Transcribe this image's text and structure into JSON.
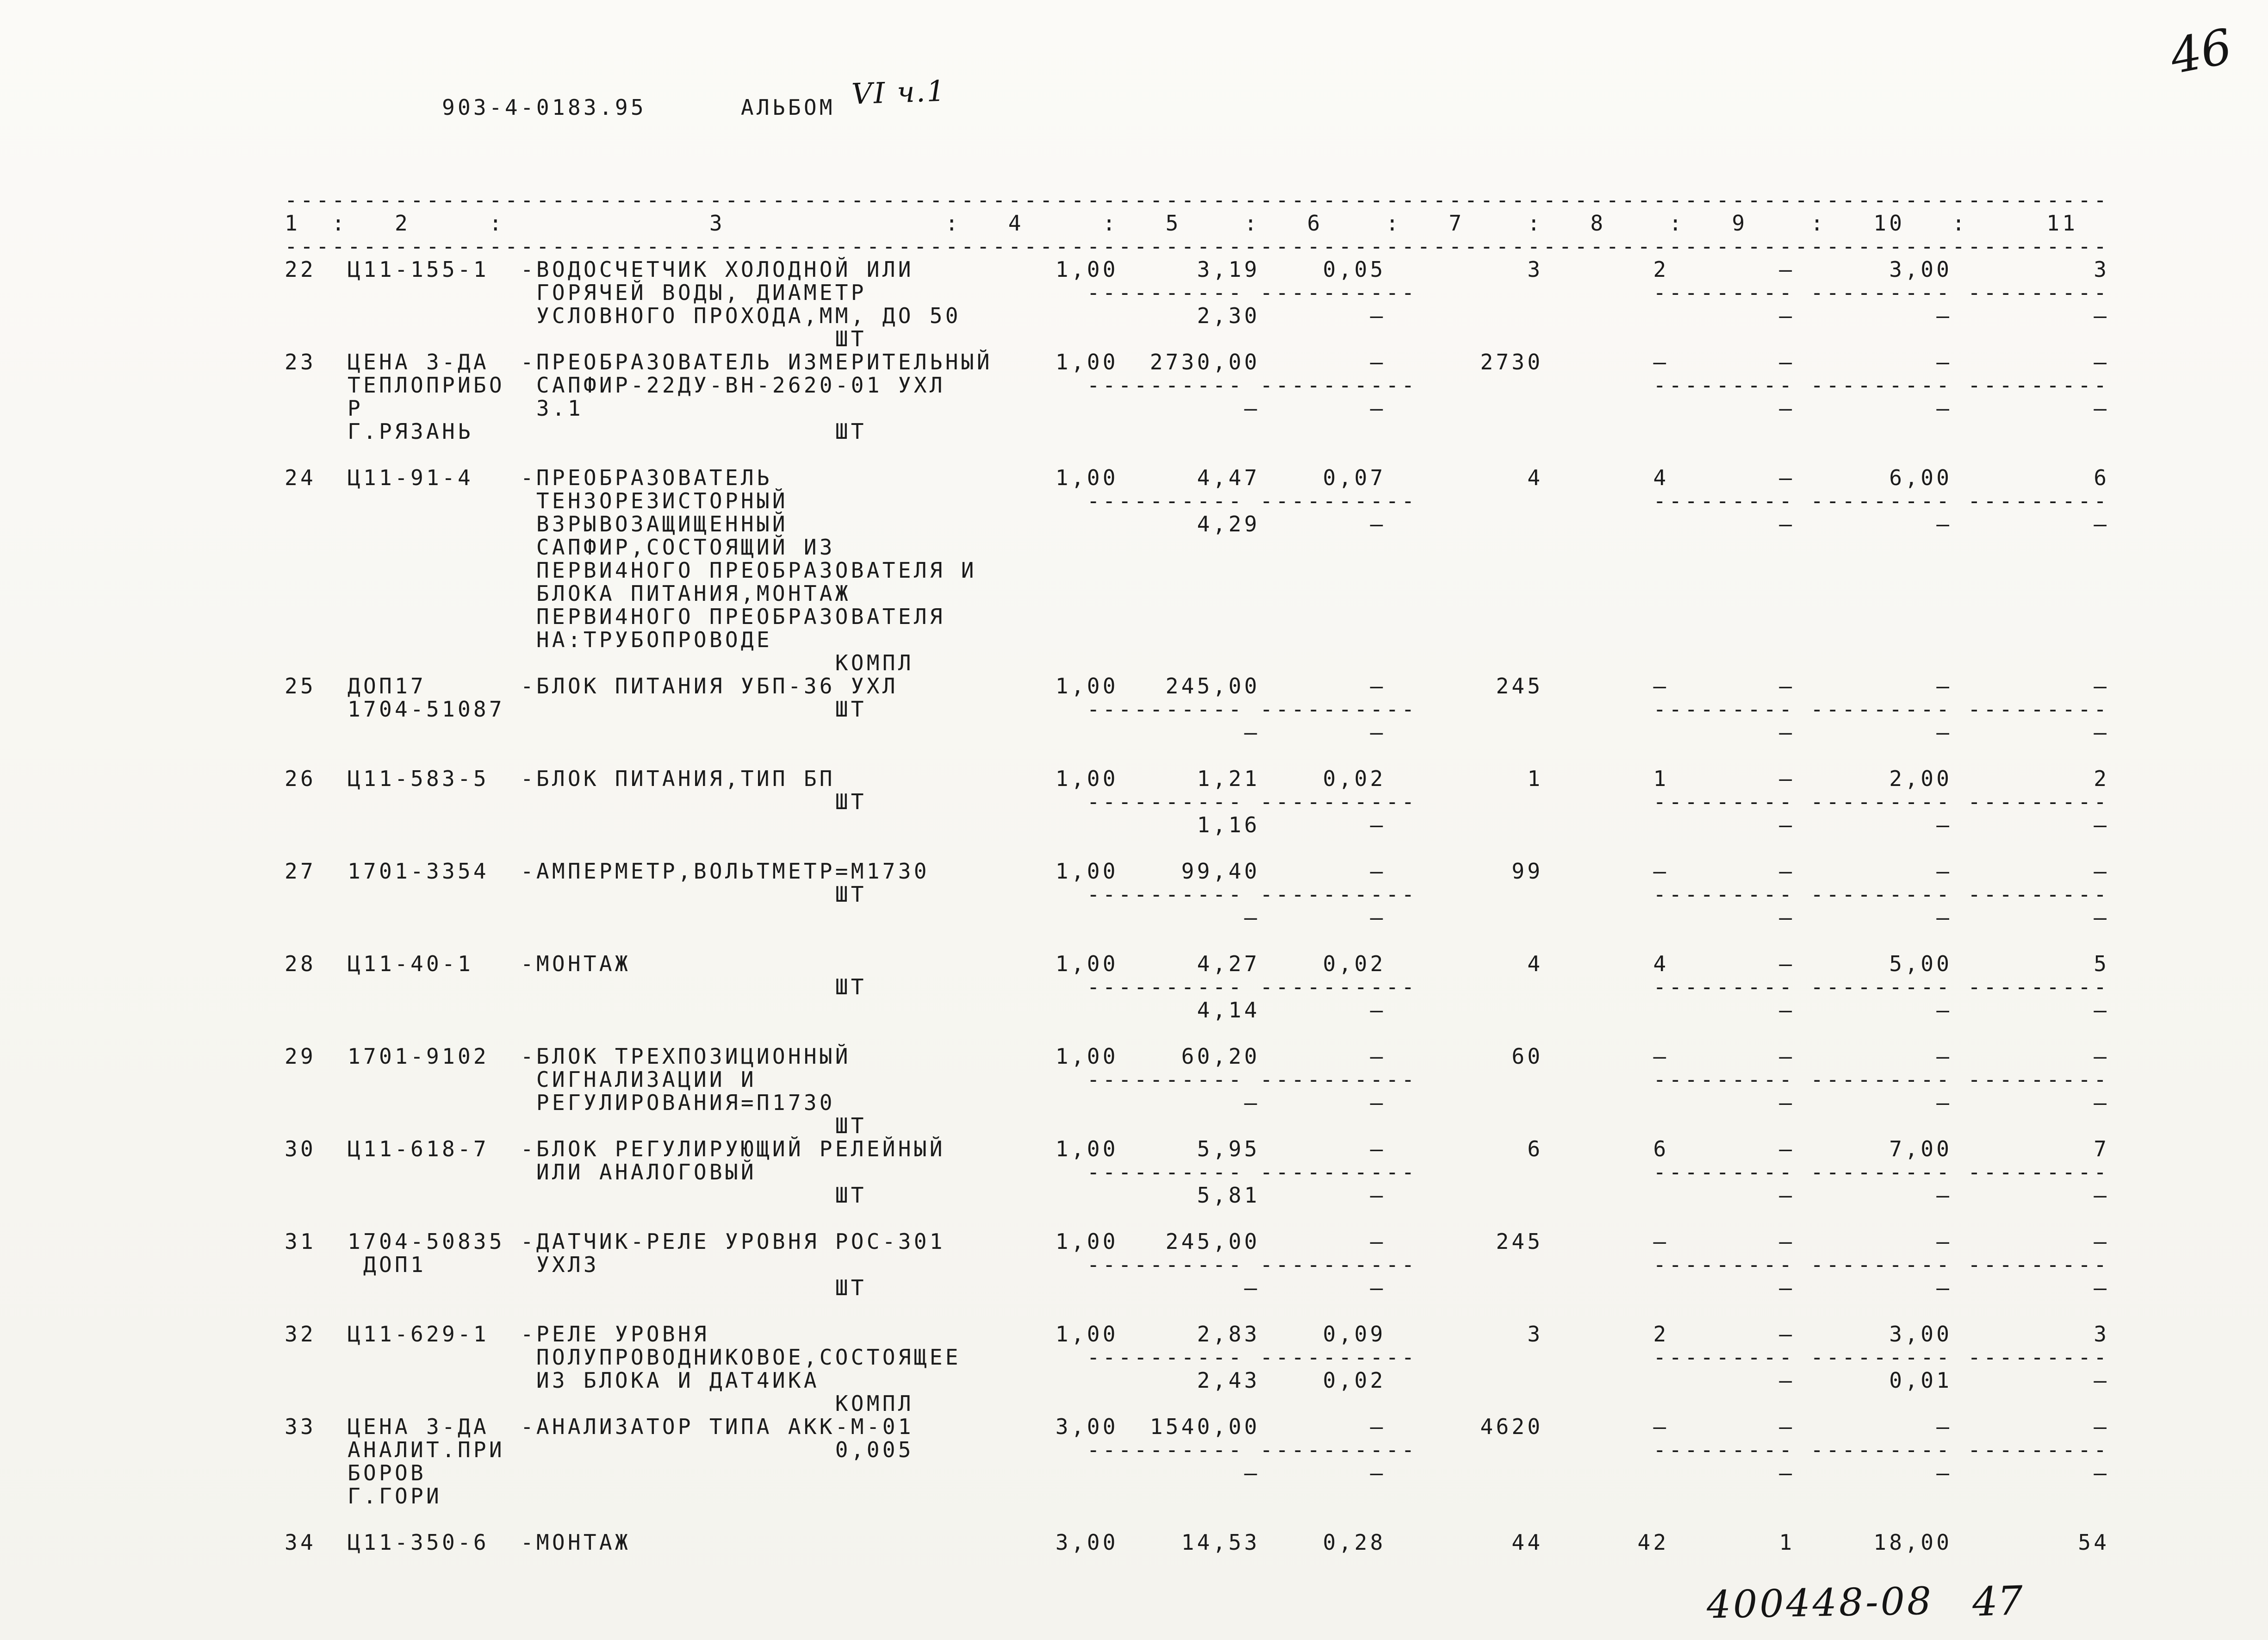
{
  "page": {
    "doc_number": "903-4-0183.95",
    "album_label": "АЛЬБОМ",
    "album_handwritten": "VI ч.1",
    "page_number": "46",
    "footer_stamp": "400448-08",
    "footer_page": "47"
  },
  "table": {
    "headers": [
      "1",
      "2",
      "3",
      "4",
      "5",
      "6",
      "7",
      "8",
      "9",
      "10",
      "11"
    ],
    "rows": [
      {
        "item": "22",
        "gap_after": 0,
        "lines": [
          {
            "num": "22",
            "code": "Ц11-155-1",
            "desc": "-ВОДОСЧЕТЧИК ХОЛОДНОЙ ИЛИ",
            "c4": "1,00",
            "c5": "3,19",
            "c6": "0,05",
            "c7": "3",
            "c8": "2",
            "c9": "–",
            "c10": "3,00",
            "c11": "3"
          },
          {
            "desc": "ГОРЯЧЕЙ ВОДЫ, ДИАМЕТР",
            "rules": true
          },
          {
            "desc": "УСЛОВНОГО ПРОХОДА,ММ, ДО 50",
            "c5": "2,30",
            "c6": "–",
            "c9": "–",
            "c10": "–",
            "c11": "–"
          },
          {
            "unit": "ШТ"
          }
        ]
      },
      {
        "item": "23",
        "gap_after": 1,
        "lines": [
          {
            "num": "23",
            "code": "ЦЕНА З-ДА",
            "desc": "-ПРЕОБРАЗОВАТЕЛЬ ИЗМЕРИТЕЛЬНЫЙ",
            "c4": "1,00",
            "c5": "2730,00",
            "c6": "–",
            "c7": "2730",
            "c8": "–",
            "c9": "–",
            "c10": "–",
            "c11": "–"
          },
          {
            "code": "ТЕПЛОПРИБО",
            "desc": "САПФИР-22ДУ-ВН-2620-01 УХЛ",
            "rules": true
          },
          {
            "code": "Р",
            "desc": "3.1",
            "c5": "–",
            "c6": "–",
            "c9": "–",
            "c10": "–",
            "c11": "–"
          },
          {
            "code": "Г.РЯЗАНЬ",
            "unit": "ШТ"
          }
        ]
      },
      {
        "item": "24",
        "gap_after": 0,
        "lines": [
          {
            "num": "24",
            "code": "Ц11-91-4",
            "desc": "-ПРЕОБРАЗОВАТЕЛЬ",
            "c4": "1,00",
            "c5": "4,47",
            "c6": "0,07",
            "c7": "4",
            "c8": "4",
            "c9": "–",
            "c10": "6,00",
            "c11": "6"
          },
          {
            "desc": "ТЕНЗОРЕЗИСТОРНЫЙ",
            "rules": true
          },
          {
            "desc": "ВЗРЫВОЗАЩИЩЕННЫЙ",
            "c5": "4,29",
            "c6": "–",
            "c9": "–",
            "c10": "–",
            "c11": "–"
          },
          {
            "desc": "САПФИР,СОСТОЯЩИЙ ИЗ"
          },
          {
            "desc": "ПЕРВИ4НОГО ПРЕОБРАЗОВАТЕЛЯ И"
          },
          {
            "desc": "БЛОКА ПИТАНИЯ,МОНТАЖ"
          },
          {
            "desc": "ПЕРВИ4НОГО ПРЕОБРАЗОВАТЕЛЯ"
          },
          {
            "desc": "НА:ТРУБОПРОВОДЕ"
          },
          {
            "unit": "КОМПЛ"
          }
        ]
      },
      {
        "item": "25",
        "gap_after": 1,
        "lines": [
          {
            "num": "25",
            "code": "ДОП17",
            "desc": "-БЛОК ПИТАНИЯ УБП-36 УХЛ",
            "c4": "1,00",
            "c5": "245,00",
            "c6": "–",
            "c7": "245",
            "c8": "–",
            "c9": "–",
            "c10": "–",
            "c11": "–"
          },
          {
            "code": "1704-51087",
            "unit": "ШТ",
            "rules": true
          },
          {
            "c5": "–",
            "c6": "–",
            "c9": "–",
            "c10": "–",
            "c11": "–"
          }
        ]
      },
      {
        "item": "26",
        "gap_after": 1,
        "lines": [
          {
            "num": "26",
            "code": "Ц11-583-5",
            "desc": "-БЛОК ПИТАНИЯ,ТИП БП",
            "c4": "1,00",
            "c5": "1,21",
            "c6": "0,02",
            "c7": "1",
            "c8": "1",
            "c9": "–",
            "c10": "2,00",
            "c11": "2"
          },
          {
            "unit": "ШТ",
            "rules": true
          },
          {
            "c5": "1,16",
            "c6": "–",
            "c9": "–",
            "c10": "–",
            "c11": "–"
          }
        ]
      },
      {
        "item": "27",
        "gap_after": 1,
        "lines": [
          {
            "num": "27",
            "code": "1701-3354",
            "desc": "-АМПЕРМЕТР,ВОЛЬТМЕТР=М1730",
            "c4": "1,00",
            "c5": "99,40",
            "c6": "–",
            "c7": "99",
            "c8": "–",
            "c9": "–",
            "c10": "–",
            "c11": "–"
          },
          {
            "unit": "ШТ",
            "rules": true
          },
          {
            "c5": "–",
            "c6": "–",
            "c9": "–",
            "c10": "–",
            "c11": "–"
          }
        ]
      },
      {
        "item": "28",
        "gap_after": 1,
        "lines": [
          {
            "num": "28",
            "code": "Ц11-40-1",
            "desc": "-МОНТАЖ",
            "c4": "1,00",
            "c5": "4,27",
            "c6": "0,02",
            "c7": "4",
            "c8": "4",
            "c9": "–",
            "c10": "5,00",
            "c11": "5"
          },
          {
            "unit": "ШТ",
            "rules": true
          },
          {
            "c5": "4,14",
            "c6": "–",
            "c9": "–",
            "c10": "–",
            "c11": "–"
          }
        ]
      },
      {
        "item": "29",
        "gap_after": 0,
        "lines": [
          {
            "num": "29",
            "code": "1701-9102",
            "desc": "-БЛОК ТРЕХПОЗИЦИОННЫЙ",
            "c4": "1,00",
            "c5": "60,20",
            "c6": "–",
            "c7": "60",
            "c8": "–",
            "c9": "–",
            "c10": "–",
            "c11": "–"
          },
          {
            "desc": "СИГНАЛИЗАЦИИ И",
            "rules": true
          },
          {
            "desc": "РЕГУЛИРОВАНИЯ=П1730",
            "c5": "–",
            "c6": "–",
            "c9": "–",
            "c10": "–",
            "c11": "–"
          },
          {
            "unit": "ШТ"
          }
        ]
      },
      {
        "item": "30",
        "gap_after": 1,
        "lines": [
          {
            "num": "30",
            "code": "Ц11-618-7",
            "desc": "-БЛОК РЕГУЛИРУЮЩИЙ РЕЛЕЙНЫЙ",
            "c4": "1,00",
            "c5": "5,95",
            "c6": "–",
            "c7": "6",
            "c8": "6",
            "c9": "–",
            "c10": "7,00",
            "c11": "7"
          },
          {
            "desc": "ИЛИ АНАЛОГОВЫЙ",
            "rules": true
          },
          {
            "unit": "ШТ",
            "c5": "5,81",
            "c6": "–",
            "c9": "–",
            "c10": "–",
            "c11": "–"
          }
        ]
      },
      {
        "item": "31",
        "gap_after": 1,
        "lines": [
          {
            "num": "31",
            "code": "1704-50835",
            "desc": "-ДАТЧИК-РЕЛЕ УРОВНЯ РОС-301",
            "c4": "1,00",
            "c5": "245,00",
            "c6": "–",
            "c7": "245",
            "c8": "–",
            "c9": "–",
            "c10": "–",
            "c11": "–"
          },
          {
            "code": " ДОП1",
            "desc": "УХЛ3",
            "rules": true
          },
          {
            "unit": "ШТ",
            "c5": "–",
            "c6": "–",
            "c9": "–",
            "c10": "–",
            "c11": "–"
          }
        ]
      },
      {
        "item": "32",
        "gap_after": 0,
        "lines": [
          {
            "num": "32",
            "code": "Ц11-629-1",
            "desc": "-РЕЛЕ УРОВНЯ",
            "c4": "1,00",
            "c5": "2,83",
            "c6": "0,09",
            "c7": "3",
            "c8": "2",
            "c9": "–",
            "c10": "3,00",
            "c11": "3"
          },
          {
            "desc": "ПОЛУПРОВОДНИКОВОЕ,СОСТОЯЩЕЕ",
            "rules": true
          },
          {
            "desc": "ИЗ БЛОКА И ДАТ4ИКА",
            "c5": "2,43",
            "c6": "0,02",
            "c9": "–",
            "c10": "0,01",
            "c11": "–"
          },
          {
            "unit": "КОМПЛ"
          }
        ]
      },
      {
        "item": "33",
        "gap_after": 1,
        "lines": [
          {
            "num": "33",
            "code": "ЦЕНА З-ДА",
            "desc": "-АНАЛИЗАТОР ТИПА АКК-М-01",
            "c4": "3,00",
            "c5": "1540,00",
            "c6": "–",
            "c7": "4620",
            "c8": "–",
            "c9": "–",
            "c10": "–",
            "c11": "–"
          },
          {
            "code": "АНАЛИТ.ПРИ",
            "unit": "0,005",
            "rules": true
          },
          {
            "code": "БОРОВ",
            "c5": "–",
            "c6": "–",
            "c9": "–",
            "c10": "–",
            "c11": "–"
          },
          {
            "code": "Г.ГОРИ"
          }
        ]
      },
      {
        "item": "34",
        "gap_after": 0,
        "lines": [
          {
            "num": "34",
            "code": "Ц11-350-6",
            "desc": "-МОНТАЖ",
            "c4": "3,00",
            "c5": "14,53",
            "c6": "0,28",
            "c7": "44",
            "c8": "42",
            "c9": "1",
            "c10": "18,00",
            "c11": "54"
          }
        ]
      }
    ]
  }
}
